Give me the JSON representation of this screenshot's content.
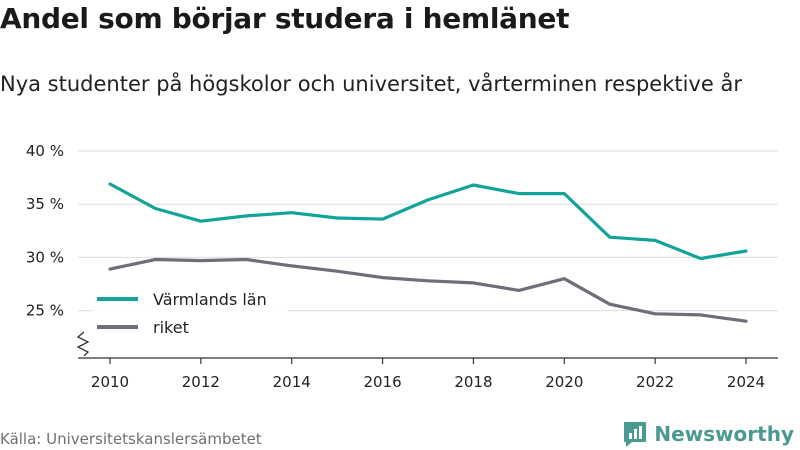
{
  "title": "Andel som börjar studera i hemlänet",
  "subtitle": "Nya studenter på högskolor och universitet, vårterminen respektive år",
  "source": "Källa: Universitetskanslersämbetet",
  "brand": {
    "name": "Newsworthy",
    "icon": "newsworthy-logo-icon",
    "color": "#4a9a92"
  },
  "chart_data": {
    "type": "line",
    "title": "Andel som börjar studera i hemlänet",
    "subtitle": "Nya studenter på högskolor och universitet, vårterminen respektive år",
    "x": [
      2010,
      2011,
      2012,
      2013,
      2014,
      2015,
      2016,
      2017,
      2018,
      2019,
      2020,
      2021,
      2022,
      2023,
      2024
    ],
    "x_ticks": [
      2010,
      2012,
      2014,
      2016,
      2018,
      2020,
      2022,
      2024
    ],
    "y_ticks": [
      25,
      30,
      35,
      40
    ],
    "y_tick_labels": [
      "25 %",
      "30 %",
      "35 %",
      "40 %"
    ],
    "ylim": [
      20,
      40
    ],
    "axis_break": true,
    "grid": true,
    "legend_position": "bottom-left",
    "series": [
      {
        "name": "Värmlands län",
        "color": "#12a39a",
        "values": [
          36.9,
          34.6,
          33.4,
          33.9,
          34.2,
          33.7,
          33.6,
          35.4,
          36.8,
          36.0,
          36.0,
          31.9,
          31.6,
          29.9,
          30.6
        ]
      },
      {
        "name": "riket",
        "color": "#6e6e78",
        "values": [
          28.9,
          29.8,
          29.7,
          29.8,
          29.2,
          28.7,
          28.1,
          27.8,
          27.6,
          26.9,
          28.0,
          25.6,
          24.7,
          24.6,
          24.0
        ]
      }
    ]
  }
}
